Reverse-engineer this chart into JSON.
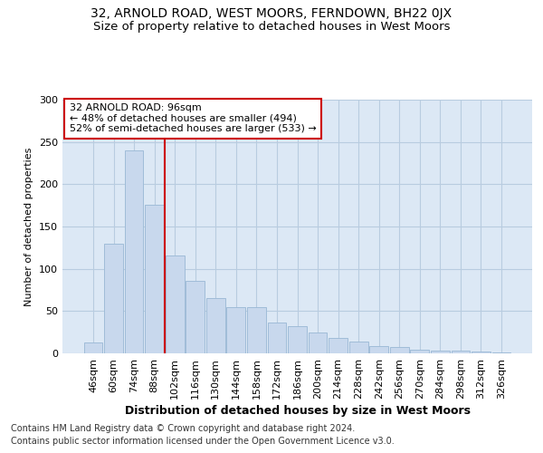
{
  "title": "32, ARNOLD ROAD, WEST MOORS, FERNDOWN, BH22 0JX",
  "subtitle": "Size of property relative to detached houses in West Moors",
  "xlabel": "Distribution of detached houses by size in West Moors",
  "ylabel": "Number of detached properties",
  "categories": [
    "46sqm",
    "60sqm",
    "74sqm",
    "88sqm",
    "102sqm",
    "116sqm",
    "130sqm",
    "144sqm",
    "158sqm",
    "172sqm",
    "186sqm",
    "200sqm",
    "214sqm",
    "228sqm",
    "242sqm",
    "256sqm",
    "270sqm",
    "284sqm",
    "298sqm",
    "312sqm",
    "326sqm"
  ],
  "values": [
    13,
    130,
    240,
    176,
    116,
    86,
    65,
    55,
    55,
    36,
    32,
    25,
    18,
    14,
    9,
    8,
    4,
    3,
    3,
    2,
    1
  ],
  "bar_color": "#c8d8ed",
  "bar_edge_color": "#a0bcd8",
  "vline_x": 3.5,
  "vline_color": "#cc0000",
  "annotation_text": "32 ARNOLD ROAD: 96sqm\n← 48% of detached houses are smaller (494)\n52% of semi-detached houses are larger (533) →",
  "annotation_box_color": "#ffffff",
  "annotation_box_edge": "#cc0000",
  "ylim": [
    0,
    300
  ],
  "yticks": [
    0,
    50,
    100,
    150,
    200,
    250,
    300
  ],
  "grid_color": "#b8cce0",
  "plot_bg_color": "#dce8f5",
  "footer1": "Contains HM Land Registry data © Crown copyright and database right 2024.",
  "footer2": "Contains public sector information licensed under the Open Government Licence v3.0.",
  "title_fontsize": 10,
  "subtitle_fontsize": 9.5,
  "xlabel_fontsize": 9,
  "ylabel_fontsize": 8,
  "tick_fontsize": 8,
  "footer_fontsize": 7
}
